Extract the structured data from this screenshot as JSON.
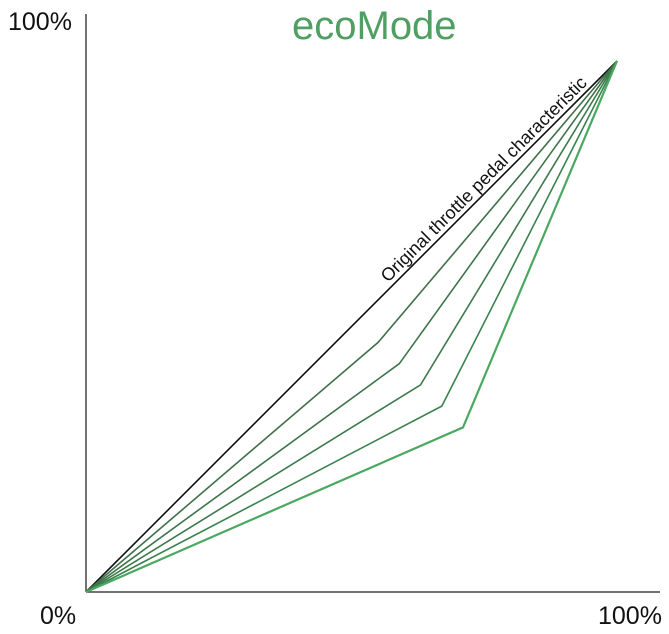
{
  "chart_data": {
    "type": "line",
    "title": "ecoMode",
    "xlabel": "",
    "ylabel": "",
    "xlim": [
      0,
      100
    ],
    "ylim": [
      0,
      100
    ],
    "grid": false,
    "x_ticks": [
      "0%",
      "100%"
    ],
    "y_ticks": [
      "100%"
    ],
    "annotation": "Original throttle pedal characteristic",
    "colors": {
      "title": "#4f9f63",
      "original": "#111111",
      "curves": [
        "#3f7049",
        "#3d7449",
        "#3b7a4b",
        "#3a824e",
        "#3a8c52",
        "#4aa860"
      ],
      "axis": "#444444"
    },
    "series": [
      {
        "x": [
          0,
          100
        ],
        "y": [
          0,
          100
        ]
      },
      {
        "x": [
          0,
          55,
          100
        ],
        "y": [
          0,
          47,
          100
        ]
      },
      {
        "x": [
          0,
          59,
          100
        ],
        "y": [
          0,
          43,
          100
        ]
      },
      {
        "x": [
          0,
          63,
          100
        ],
        "y": [
          0,
          39,
          100
        ]
      },
      {
        "x": [
          0,
          67,
          100
        ],
        "y": [
          0,
          35,
          100
        ]
      },
      {
        "x": [
          0,
          71,
          100
        ],
        "y": [
          0,
          31,
          100
        ]
      },
      {
        "x": [
          0,
          71,
          100
        ],
        "y": [
          0,
          31,
          100
        ]
      }
    ]
  }
}
